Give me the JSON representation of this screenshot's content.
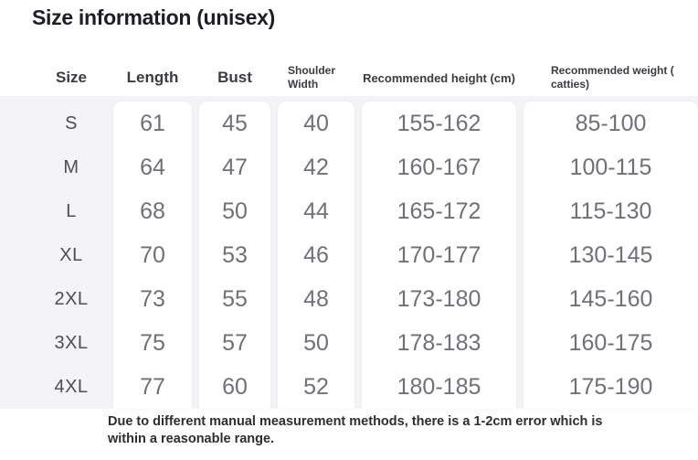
{
  "title": "Size information (unisex)",
  "table": {
    "columns": [
      {
        "key": "size",
        "label": "Size"
      },
      {
        "key": "length",
        "label": "Length"
      },
      {
        "key": "bust",
        "label": "Bust"
      },
      {
        "key": "shoulder",
        "label": "Shoulder Width"
      },
      {
        "key": "height",
        "label": "Recommended height (cm)"
      },
      {
        "key": "weight",
        "label": "Recommended weight ( catties)"
      }
    ],
    "rows": [
      {
        "size": "S",
        "length": "61",
        "bust": "45",
        "shoulder": "40",
        "height": "155-162",
        "weight": "85-100"
      },
      {
        "size": "M",
        "length": "64",
        "bust": "47",
        "shoulder": "42",
        "height": "160-167",
        "weight": "100-115"
      },
      {
        "size": "L",
        "length": "68",
        "bust": "50",
        "shoulder": "44",
        "height": "165-172",
        "weight": "115-130"
      },
      {
        "size": "XL",
        "length": "70",
        "bust": "53",
        "shoulder": "46",
        "height": "170-177",
        "weight": "130-145"
      },
      {
        "size": "2XL",
        "length": "73",
        "bust": "55",
        "shoulder": "48",
        "height": "173-180",
        "weight": "145-160"
      },
      {
        "size": "3XL",
        "length": "75",
        "bust": "57",
        "shoulder": "50",
        "height": "178-183",
        "weight": "160-175"
      },
      {
        "size": "4XL",
        "length": "77",
        "bust": "60",
        "shoulder": "52",
        "height": "180-185",
        "weight": "175-190"
      }
    ]
  },
  "footer_note": "Due to different manual measurement methods, there is a 1-2cm error which is within a reasonable range.",
  "colors": {
    "page_background": "#ffffff",
    "table_backdrop": "#f4f4f6",
    "column_band": "#ffffff",
    "title_text": "#1e1e26",
    "header_text": "#3b3b40",
    "value_text": "#707076",
    "footer_text": "#2e2e30"
  }
}
